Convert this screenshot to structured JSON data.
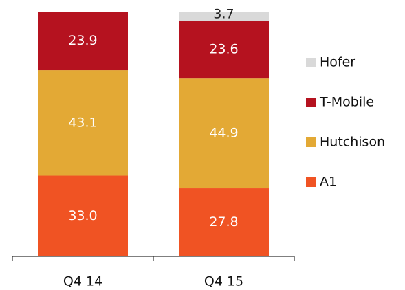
{
  "chart_data": {
    "type": "stacked_bar",
    "categories": [
      "Q4 14",
      "Q4 15"
    ],
    "series": [
      {
        "name": "A1",
        "color": "#f05323",
        "values": [
          33.0,
          27.8
        ],
        "value_labels": [
          "33.0",
          "27.8"
        ]
      },
      {
        "name": "Hutchison",
        "color": "#e3a935",
        "values": [
          43.1,
          44.9
        ],
        "value_labels": [
          "43.1",
          "44.9"
        ]
      },
      {
        "name": "T-Mobile",
        "color": "#b5121f",
        "values": [
          23.9,
          23.6
        ],
        "value_labels": [
          "23.9",
          "23.6"
        ]
      },
      {
        "name": "Hofer",
        "color": "#d9d9d9",
        "values": [
          null,
          3.7
        ],
        "value_labels": [
          null,
          "3.7"
        ]
      }
    ],
    "ylim": [
      0,
      100
    ],
    "legend": "right"
  }
}
